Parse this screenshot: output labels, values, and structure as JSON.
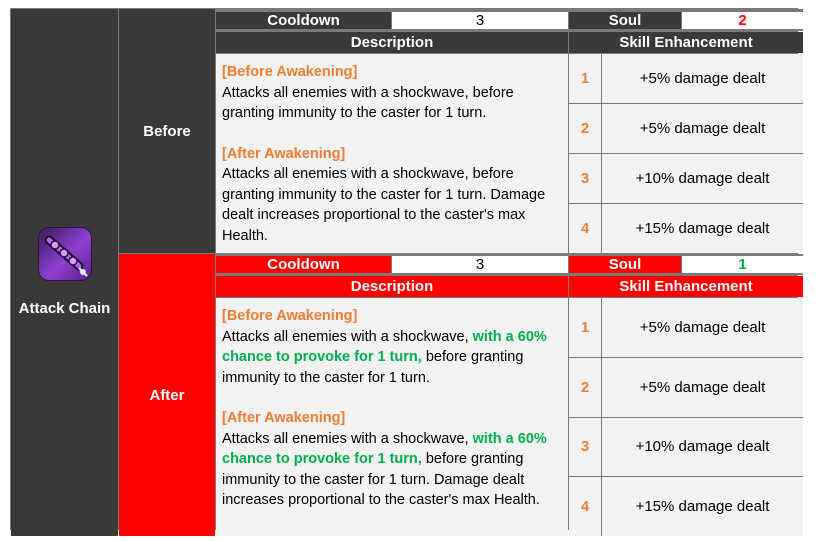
{
  "skill": {
    "name": "Attack Chain",
    "icon": "attack-chain-skill-icon"
  },
  "labels": {
    "cooldown": "Cooldown",
    "soul": "Soul",
    "description": "Description",
    "enhancement": "Skill Enhancement"
  },
  "before": {
    "label": "Before",
    "cooldown": "3",
    "soul": "2",
    "before_awakening_title": "[Before Awakening]",
    "before_awakening_text": "Attacks all enemies with a shockwave, before granting immunity to the caster for 1 turn.",
    "after_awakening_title": "[After Awakening]",
    "after_awakening_text": "Attacks all enemies with a shockwave, before granting immunity to the caster for 1 turn. Damage dealt increases proportional to the caster's max Health.",
    "enhancements": [
      {
        "level": "1",
        "text": "+5% damage dealt"
      },
      {
        "level": "2",
        "text": "+5% damage dealt"
      },
      {
        "level": "3",
        "text": "+10% damage dealt"
      },
      {
        "level": "4",
        "text": "+15% damage dealt"
      }
    ]
  },
  "after": {
    "label": "After",
    "cooldown": "3",
    "soul": "1",
    "before_awakening_title": "[Before Awakening]",
    "before_awakening_pre": "Attacks all enemies with a shockwave, ",
    "before_awakening_highlight": "with a 60% chance to provoke for 1 turn,",
    "before_awakening_post": " before granting immunity to the caster for 1 turn.",
    "after_awakening_title": "[After Awakening]",
    "after_awakening_pre": "Attacks all enemies with a shockwave, ",
    "after_awakening_highlight": "with a 60% chance to provoke for 1 turn,",
    "after_awakening_post": " before granting immunity to the caster for 1 turn. Damage dealt increases proportional to the caster's max Health.",
    "enhancements": [
      {
        "level": "1",
        "text": "+5% damage dealt"
      },
      {
        "level": "2",
        "text": "+5% damage dealt"
      },
      {
        "level": "3",
        "text": "+10% damage dealt"
      },
      {
        "level": "4",
        "text": "+15% damage dealt"
      }
    ]
  },
  "colors": {
    "dark_header": "#3b3838",
    "red_header": "#ff0000",
    "awakening_title": "#ed7d31",
    "highlight_green": "#00b050",
    "soul_before": "#ff0000",
    "soul_after": "#00b050"
  }
}
